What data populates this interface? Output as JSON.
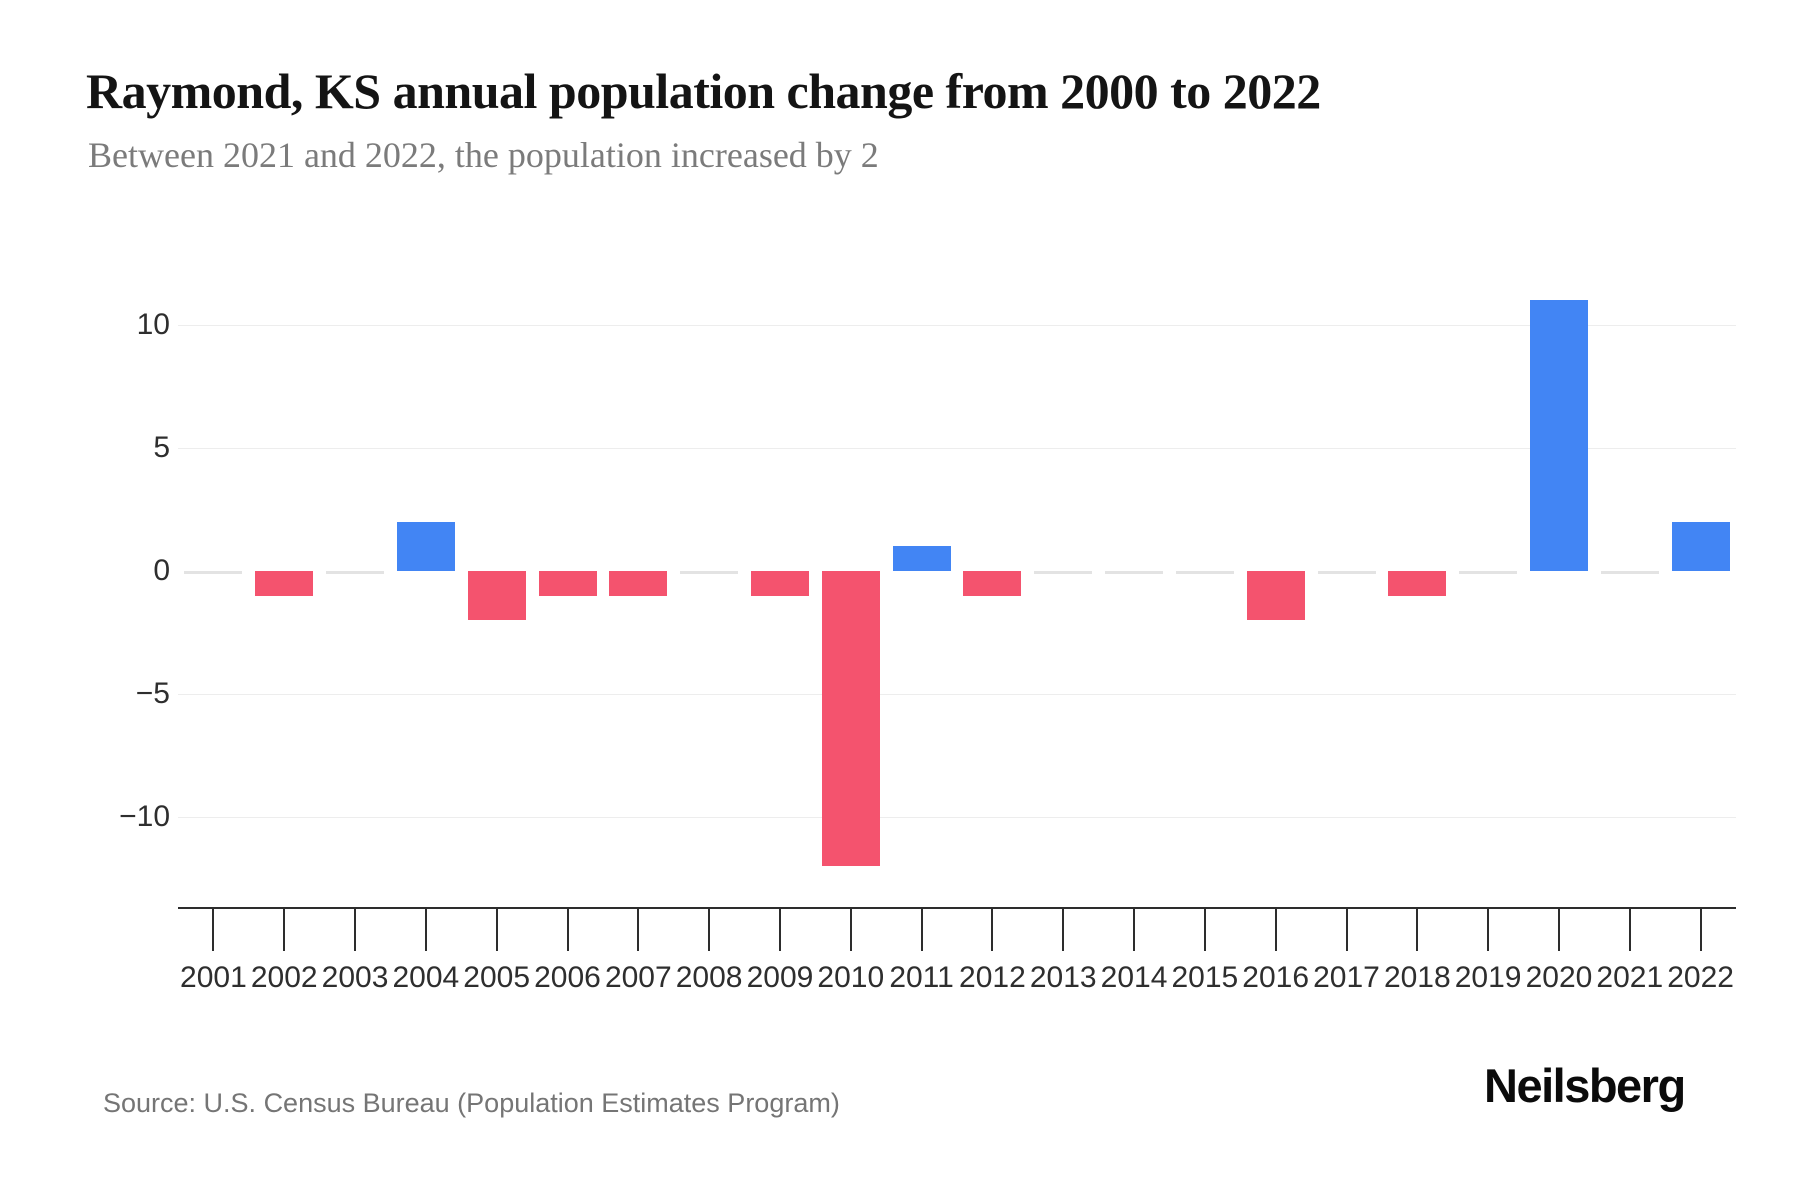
{
  "header": {
    "title": "Raymond, KS annual population change from 2000 to 2022",
    "subtitle": "Between 2021 and 2022, the population increased by 2"
  },
  "chart_data": {
    "type": "bar",
    "title": "Raymond, KS annual population change from 2000 to 2022",
    "subtitle": "Between 2021 and 2022, the population increased by 2",
    "categories": [
      "2001",
      "2002",
      "2003",
      "2004",
      "2005",
      "2006",
      "2007",
      "2008",
      "2009",
      "2010",
      "2011",
      "2012",
      "2013",
      "2014",
      "2015",
      "2016",
      "2017",
      "2018",
      "2019",
      "2020",
      "2021",
      "2022"
    ],
    "values": [
      0,
      -1,
      0,
      2,
      -2,
      -1,
      -1,
      0,
      -1,
      -12,
      1,
      -1,
      0,
      0,
      0,
      -2,
      0,
      -1,
      0,
      11,
      0,
      2
    ],
    "xlabel": "",
    "ylabel": "",
    "ylim": [
      -13.7,
      12.3
    ],
    "grid": "horizontal",
    "legend": "none",
    "y_ticks": [
      {
        "label": "10",
        "value": 10
      },
      {
        "label": "5",
        "value": 5
      },
      {
        "label": "0",
        "value": 0
      },
      {
        "label": "−5",
        "value": -5
      },
      {
        "label": "−10",
        "value": -10
      }
    ],
    "colors": {
      "positive_bar": "#4285F4",
      "negative_bar": "#F4536E",
      "zero_dash": "#E3E3E3",
      "gridline": "#EDEDED",
      "axis": "#2D2D2D",
      "tick_label": "#2E2E2E"
    }
  },
  "footer": {
    "source": "Source: U.S. Census Bureau (Population Estimates Program)",
    "logo": "Neilsberg"
  }
}
